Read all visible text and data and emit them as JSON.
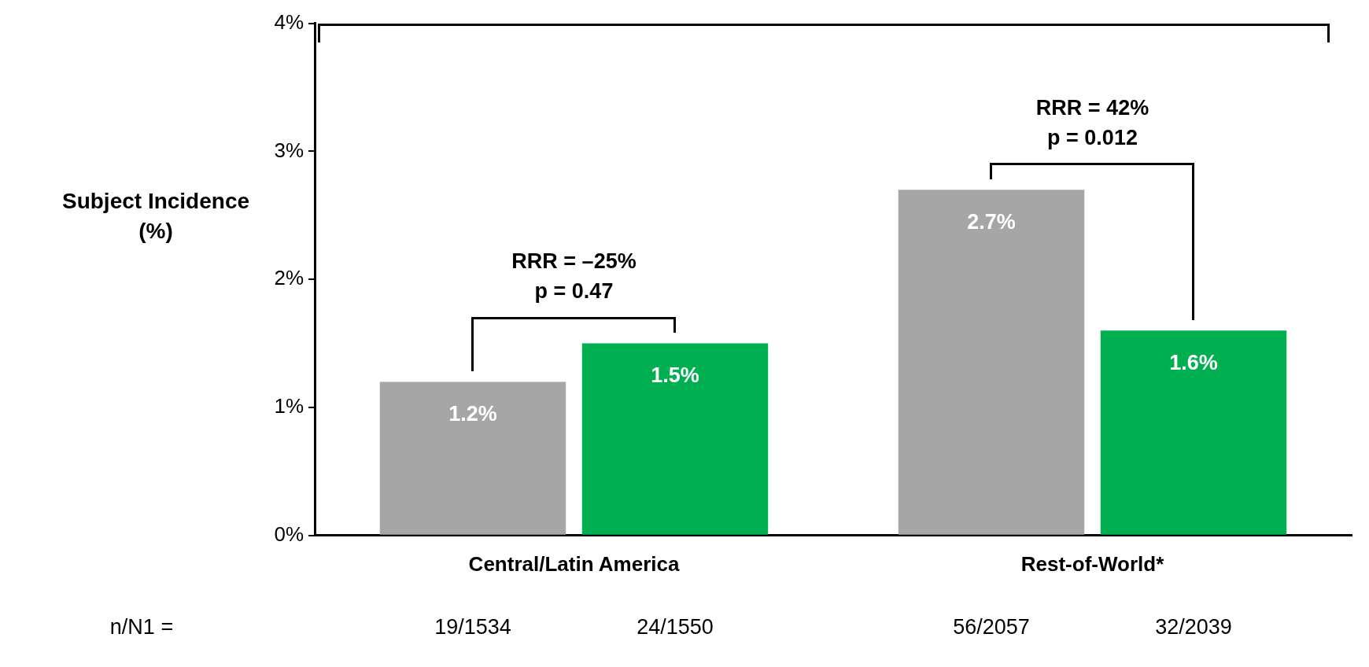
{
  "chart_data": {
    "type": "bar",
    "ylabel": "Subject Incidence (%)",
    "categories": [
      "Central/Latin America",
      "Rest-of-World*"
    ],
    "series": [
      {
        "color": "#a6a6a6",
        "values": [
          1.2,
          2.7
        ],
        "value_labels": [
          "1.2%",
          "2.7%"
        ]
      },
      {
        "color": "#00b050",
        "values": [
          1.5,
          1.6
        ],
        "value_labels": [
          "1.5%",
          "1.6%"
        ]
      }
    ],
    "ylim": [
      0,
      4
    ],
    "yticks": [
      {
        "value": 0,
        "label": "0%"
      },
      {
        "value": 1,
        "label": "1%"
      },
      {
        "value": 2,
        "label": "2%"
      },
      {
        "value": 3,
        "label": "3%"
      },
      {
        "value": 4,
        "label": "4%"
      }
    ],
    "legend": false,
    "annotations": [
      "RRR = –25%",
      "p = 0.47",
      "RRR = 42%",
      "p = 0.012",
      "n/N1 =",
      "19/1534",
      "24/1550",
      "56/2057",
      "32/2039"
    ]
  }
}
